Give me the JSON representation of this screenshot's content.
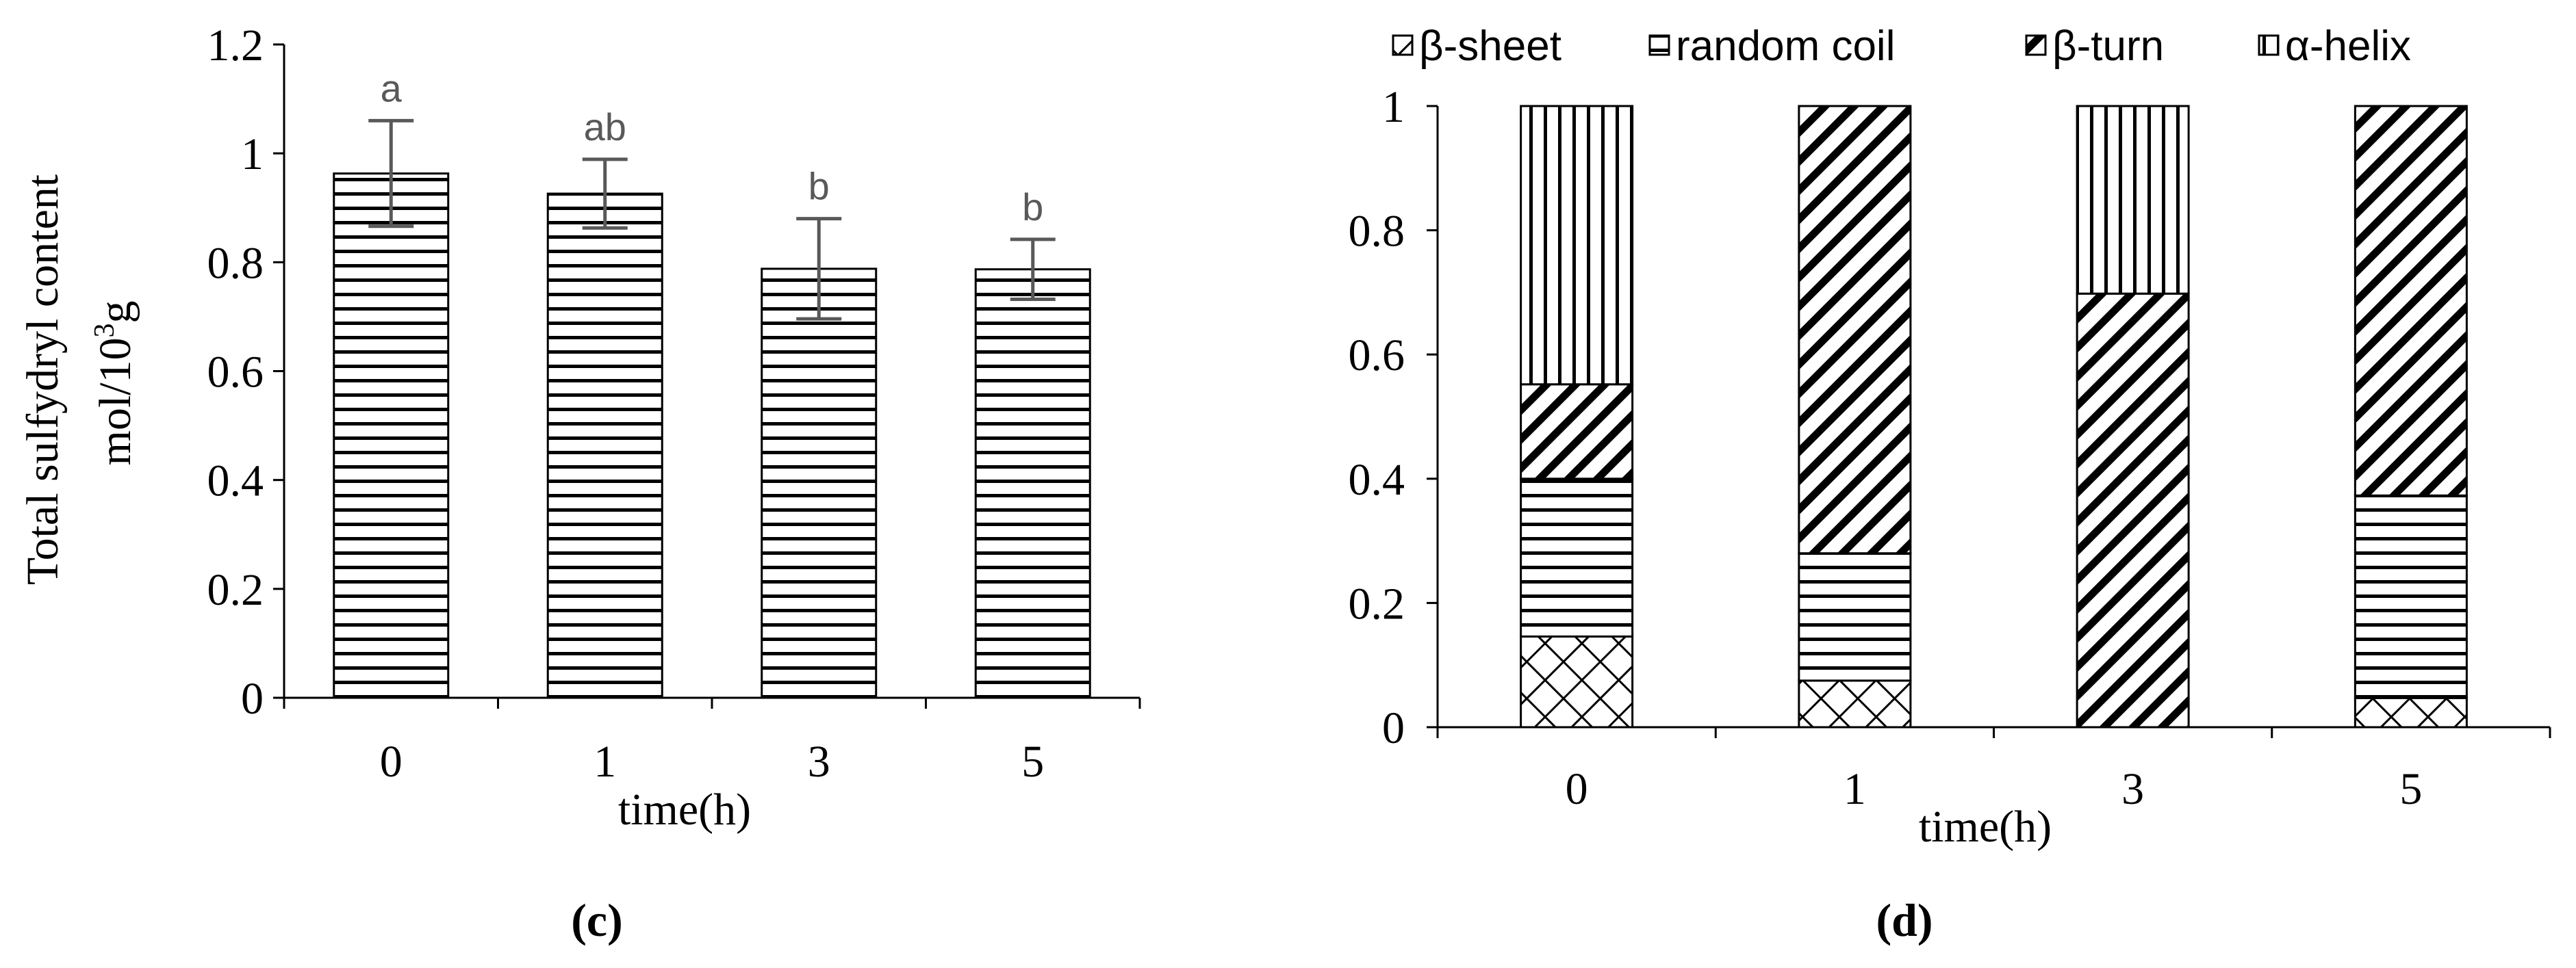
{
  "chart_data": [
    {
      "panel": "c",
      "caption": "(c)",
      "type": "bar",
      "ylabel_line1": "Total sulfydryl content",
      "ylabel_line2_base": "mol/10",
      "ylabel_line2_sup": "3",
      "ylabel_line2_tail": "g",
      "xlabel": "time(h)",
      "categories": [
        "0",
        "1",
        "3",
        "5"
      ],
      "values": [
        0.963,
        0.926,
        0.788,
        0.787
      ],
      "error": [
        0.097,
        0.063,
        0.092,
        0.055
      ],
      "significance": [
        "a",
        "ab",
        "b",
        "b"
      ],
      "ylim": [
        0,
        1.2
      ],
      "yticks": [
        "0",
        "0.2",
        "0.4",
        "0.6",
        "0.8",
        "1",
        "1.2"
      ],
      "grid": false,
      "fill_pattern": "horizontal-lines"
    },
    {
      "panel": "d",
      "caption": "(d)",
      "type": "bar",
      "stacked": true,
      "xlabel": "time(h)",
      "categories": [
        "0",
        "1",
        "3",
        "5"
      ],
      "ylim": [
        0,
        1
      ],
      "yticks": [
        "0",
        "0.2",
        "0.4",
        "0.6",
        "0.8",
        "1"
      ],
      "grid": false,
      "legend_position": "top",
      "series": [
        {
          "name": "β-sheet",
          "pattern": "crosshatch",
          "values": [
            0.146,
            0.075,
            0.0,
            0.047
          ]
        },
        {
          "name": "random coil",
          "pattern": "horizontal-lines",
          "values": [
            0.254,
            0.205,
            0.0,
            0.326
          ]
        },
        {
          "name": "β-turn",
          "pattern": "diagonal-lines",
          "values": [
            0.152,
            0.72,
            0.698,
            0.627
          ]
        },
        {
          "name": "α-helix",
          "pattern": "vertical-lines",
          "values": [
            0.448,
            0.0,
            0.302,
            0.0
          ]
        }
      ]
    }
  ]
}
